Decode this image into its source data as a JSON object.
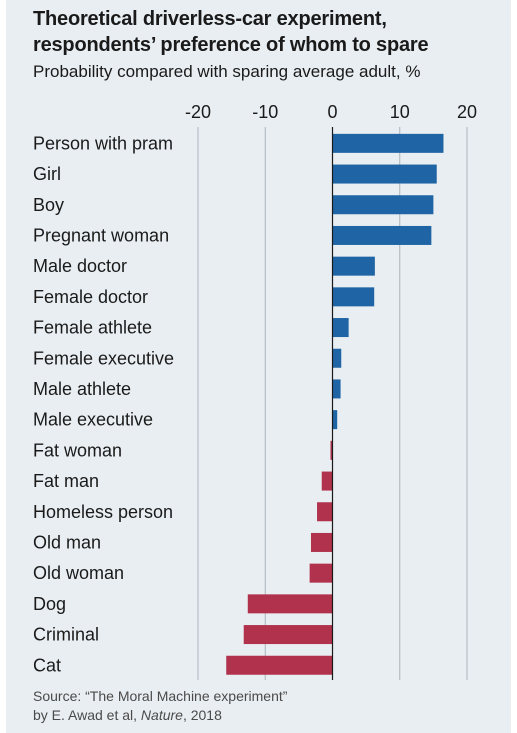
{
  "header": {
    "title_line1": "Theoretical driverless-car experiment,",
    "title_line2": "respondents’ preference of whom to spare",
    "subtitle": "Probability compared with sparing average adult, %"
  },
  "source": {
    "prefix": "Source: “The Moral Machine experiment”",
    "by": "by E. Awad et al, ",
    "journal": "Nature",
    "year": ", 2018"
  },
  "colors": {
    "positive": "#1f64a4",
    "negative": "#b0324c",
    "grid": "#aab4bd",
    "zero_line": "#1a1a1a",
    "background": "#e9eef2"
  },
  "chart_data": {
    "type": "bar",
    "orientation": "horizontal",
    "categories": [
      "Person with pram",
      "Girl",
      "Boy",
      "Pregnant woman",
      "Male doctor",
      "Female doctor",
      "Female athlete",
      "Female executive",
      "Male athlete",
      "Male executive",
      "Fat woman",
      "Fat man",
      "Homeless person",
      "Old man",
      "Old woman",
      "Dog",
      "Criminal",
      "Cat"
    ],
    "values": [
      16.5,
      15.5,
      15.0,
      14.7,
      6.3,
      6.2,
      2.4,
      1.3,
      1.2,
      0.7,
      -0.3,
      -1.6,
      -2.3,
      -3.2,
      -3.4,
      -12.6,
      -13.2,
      -15.8
    ],
    "xlim": [
      -20,
      20
    ],
    "ticks": [
      "-20",
      "-10",
      "0",
      "10",
      "20"
    ],
    "tick_values": [
      -20,
      -10,
      0,
      10,
      20
    ],
    "axis_position": "top",
    "grid": true
  }
}
